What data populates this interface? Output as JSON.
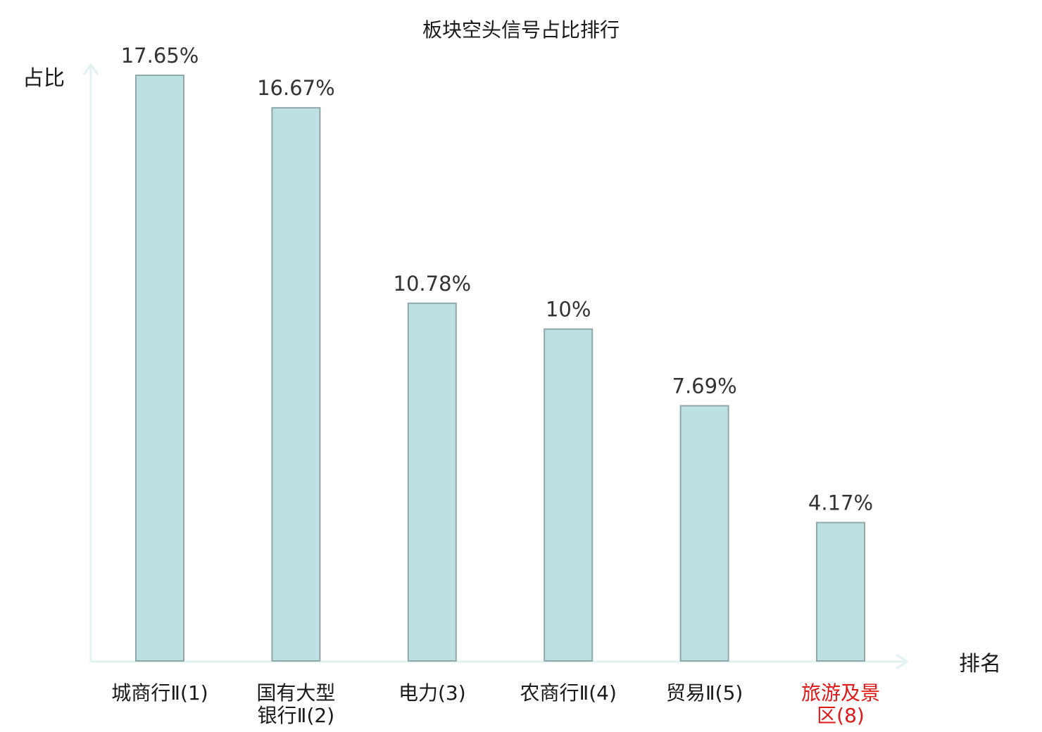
{
  "chart_data": {
    "type": "bar",
    "title": "板块空头信号占比排行",
    "ylabel": "占比",
    "xlabel": "排名",
    "grid": false,
    "ylim": [
      0,
      20
    ],
    "categories": [
      "城商行Ⅱ(1)",
      "国有大型银行Ⅱ(2)",
      "电力(3)",
      "农商行Ⅱ(4)",
      "贸易Ⅱ(5)",
      "旅游及景区(8)"
    ],
    "category_lines": [
      [
        "城商行Ⅱ(1)"
      ],
      [
        "国有大型",
        "银行Ⅱ(2)"
      ],
      [
        "电力(3)"
      ],
      [
        "农商行Ⅱ(4)"
      ],
      [
        "贸易Ⅱ(5)"
      ],
      [
        "旅游及景",
        "区(8)"
      ]
    ],
    "values": [
      17.65,
      16.67,
      10.78,
      10,
      7.69,
      4.17
    ],
    "value_labels": [
      "17.65%",
      "16.67%",
      "10.78%",
      "10%",
      "7.69%",
      "4.17%"
    ],
    "highlighted_categories": [
      "旅游及景区(8)"
    ],
    "colors": {
      "bar_fill": "#bde0e3",
      "bar_stroke": "#8fa8aa",
      "axis": "#e0f3f1",
      "highlight_label": "#e01818"
    }
  }
}
